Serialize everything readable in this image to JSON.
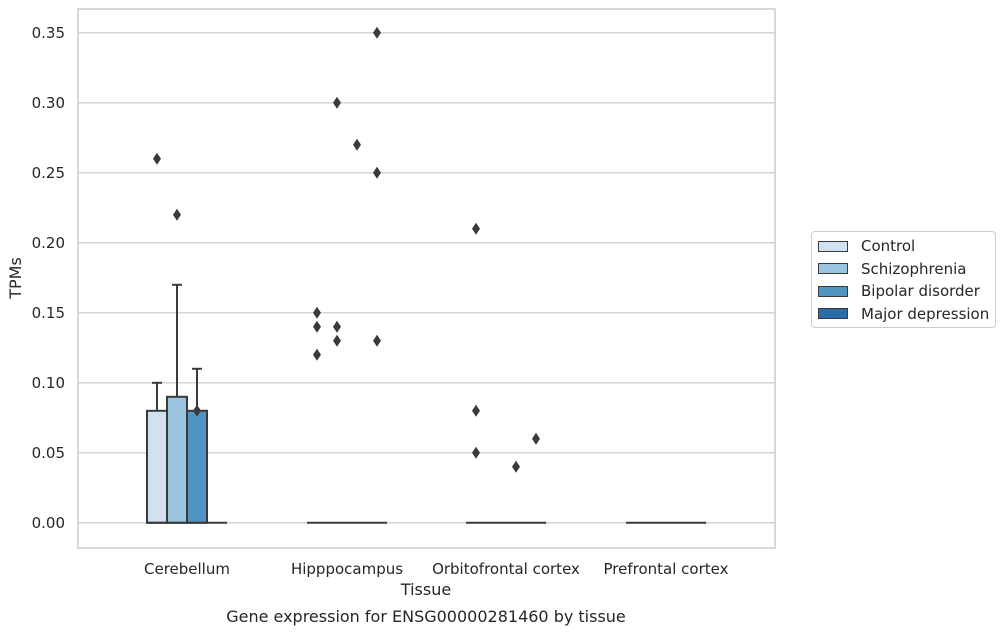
{
  "chart_data": {
    "type": "box",
    "title": "Gene expression for ENSG00000281460 by tissue",
    "xlabel": "Tissue",
    "ylabel": "TPMs",
    "ylim": [
      -0.018,
      0.367
    ],
    "yticks": [
      "0.00",
      "0.05",
      "0.10",
      "0.15",
      "0.20",
      "0.25",
      "0.30",
      "0.35"
    ],
    "ytick_values": [
      0,
      0.05,
      0.1,
      0.15,
      0.2,
      0.25,
      0.3,
      0.35
    ],
    "grid": "horizontal",
    "legend_position": "right",
    "categories": [
      "Cerebellum",
      "Hipppocampus",
      "Orbitofrontal cortex",
      "Prefrontal cortex"
    ],
    "series": [
      {
        "name": "Control",
        "color": "#d0e1f2",
        "boxes": [
          {
            "category": "Cerebellum",
            "q1": 0,
            "median": 0,
            "q3": 0.08,
            "whisker_low": 0,
            "whisker_high": 0.1,
            "outliers": [
              0.26
            ]
          },
          {
            "category": "Hipppocampus",
            "q1": 0,
            "median": 0,
            "q3": 0,
            "whisker_low": 0,
            "whisker_high": 0,
            "outliers": [
              0.15,
              0.14,
              0.12
            ]
          },
          {
            "category": "Orbitofrontal cortex",
            "q1": 0,
            "median": 0,
            "q3": 0,
            "whisker_low": 0,
            "whisker_high": 0,
            "outliers": [
              0.21,
              0.08,
              0.05
            ]
          },
          {
            "category": "Prefrontal cortex",
            "q1": 0,
            "median": 0,
            "q3": 0,
            "whisker_low": 0,
            "whisker_high": 0,
            "outliers": []
          }
        ]
      },
      {
        "name": "Schizophrenia",
        "color": "#9ac4e0",
        "boxes": [
          {
            "category": "Cerebellum",
            "q1": 0,
            "median": 0,
            "q3": 0.09,
            "whisker_low": 0,
            "whisker_high": 0.17,
            "outliers": [
              0.22
            ]
          },
          {
            "category": "Hipppocampus",
            "q1": 0,
            "median": 0,
            "q3": 0,
            "whisker_low": 0,
            "whisker_high": 0,
            "outliers": [
              0.3,
              0.14,
              0.13
            ]
          },
          {
            "category": "Orbitofrontal cortex",
            "q1": 0,
            "median": 0,
            "q3": 0,
            "whisker_low": 0,
            "whisker_high": 0,
            "outliers": []
          },
          {
            "category": "Prefrontal cortex",
            "q1": 0,
            "median": 0,
            "q3": 0,
            "whisker_low": 0,
            "whisker_high": 0,
            "outliers": []
          }
        ]
      },
      {
        "name": "Bipolar disorder",
        "color": "#5193c1",
        "boxes": [
          {
            "category": "Cerebellum",
            "q1": 0,
            "median": 0,
            "q3": 0.08,
            "whisker_low": 0,
            "whisker_high": 0.11,
            "outliers": [
              0.08
            ]
          },
          {
            "category": "Hipppocampus",
            "q1": 0,
            "median": 0,
            "q3": 0,
            "whisker_low": 0,
            "whisker_high": 0,
            "outliers": [
              0.27
            ]
          },
          {
            "category": "Orbitofrontal cortex",
            "q1": 0,
            "median": 0,
            "q3": 0,
            "whisker_low": 0,
            "whisker_high": 0,
            "outliers": [
              0.04
            ]
          },
          {
            "category": "Prefrontal cortex",
            "q1": 0,
            "median": 0,
            "q3": 0,
            "whisker_low": 0,
            "whisker_high": 0,
            "outliers": []
          }
        ]
      },
      {
        "name": "Major depression",
        "color": "#2b6ba8",
        "boxes": [
          {
            "category": "Cerebellum",
            "q1": 0,
            "median": 0,
            "q3": 0,
            "whisker_low": 0,
            "whisker_high": 0,
            "outliers": []
          },
          {
            "category": "Hipppocampus",
            "q1": 0,
            "median": 0,
            "q3": 0,
            "whisker_low": 0,
            "whisker_high": 0,
            "outliers": [
              0.35,
              0.25,
              0.13
            ]
          },
          {
            "category": "Orbitofrontal cortex",
            "q1": 0,
            "median": 0,
            "q3": 0,
            "whisker_low": 0,
            "whisker_high": 0,
            "outliers": [
              0.06
            ]
          },
          {
            "category": "Prefrontal cortex",
            "q1": 0,
            "median": 0,
            "q3": 0,
            "whisker_low": 0,
            "whisker_high": 0,
            "outliers": []
          }
        ]
      }
    ]
  },
  "colors": {
    "grid": "#d0d0d0",
    "frame": "#cccccc",
    "edge": "#3a3a3a"
  }
}
